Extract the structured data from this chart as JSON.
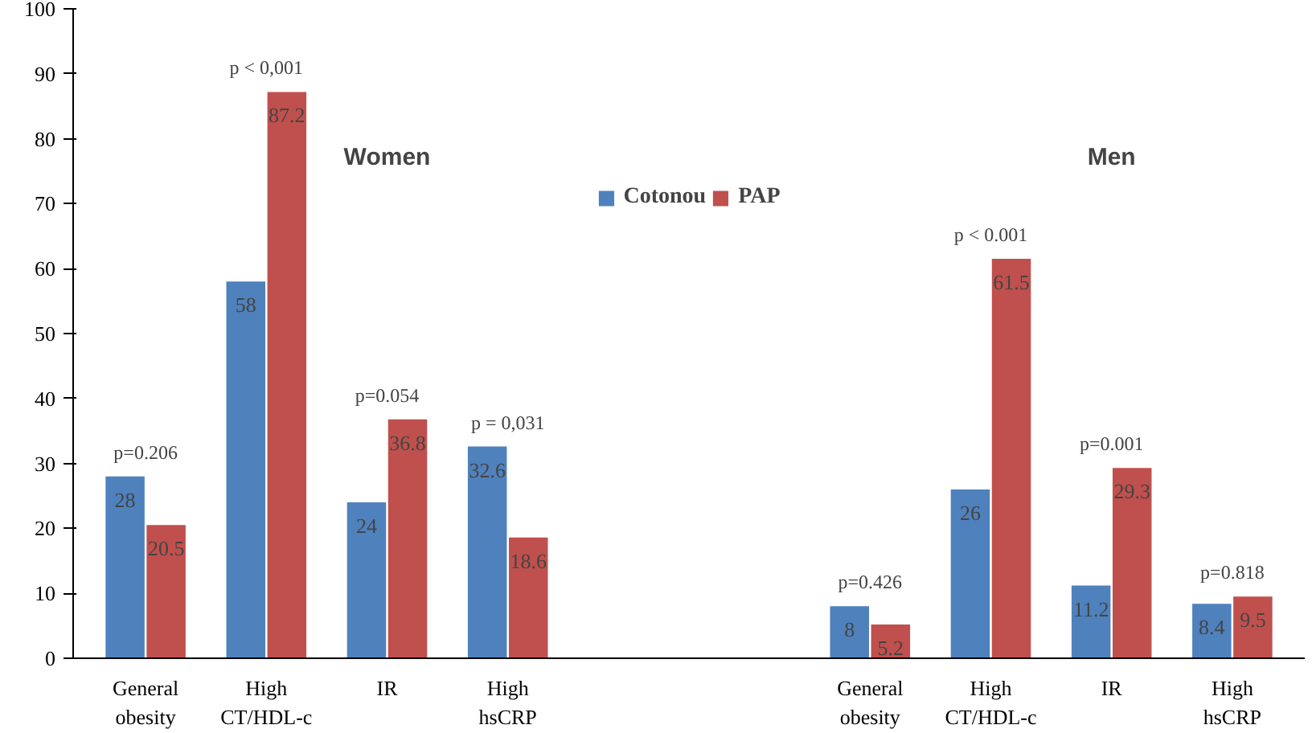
{
  "chart_data": {
    "type": "bar",
    "categories": [
      "General obesity",
      "High CT/HDL-c",
      "IR",
      "High hsCRP",
      null,
      null,
      "General obesity",
      "High CT/HDL-c",
      "IR",
      "High hsCRP"
    ],
    "series": [
      {
        "name": "Cotonou",
        "color": "#4f81bd",
        "values": [
          28,
          58,
          24,
          32.6,
          null,
          null,
          8,
          26,
          11.2,
          8.4
        ]
      },
      {
        "name": "PAP",
        "color": "#c0504d",
        "values": [
          20.5,
          87.2,
          36.8,
          18.6,
          null,
          null,
          5.2,
          61.5,
          29.3,
          9.5
        ]
      }
    ],
    "ylim": [
      0,
      100
    ],
    "yticks": [
      0,
      10,
      20,
      30,
      40,
      50,
      60,
      70,
      80,
      90,
      100
    ],
    "grid": false,
    "legend": "top",
    "data_labels": true,
    "annotations": [
      "Women",
      "Men",
      "p=0.206",
      "p < 0,001",
      "p=0.054",
      "p = 0,031",
      "p=0.426",
      "p < 0.001",
      "p=0.001",
      "p=0.818"
    ]
  }
}
